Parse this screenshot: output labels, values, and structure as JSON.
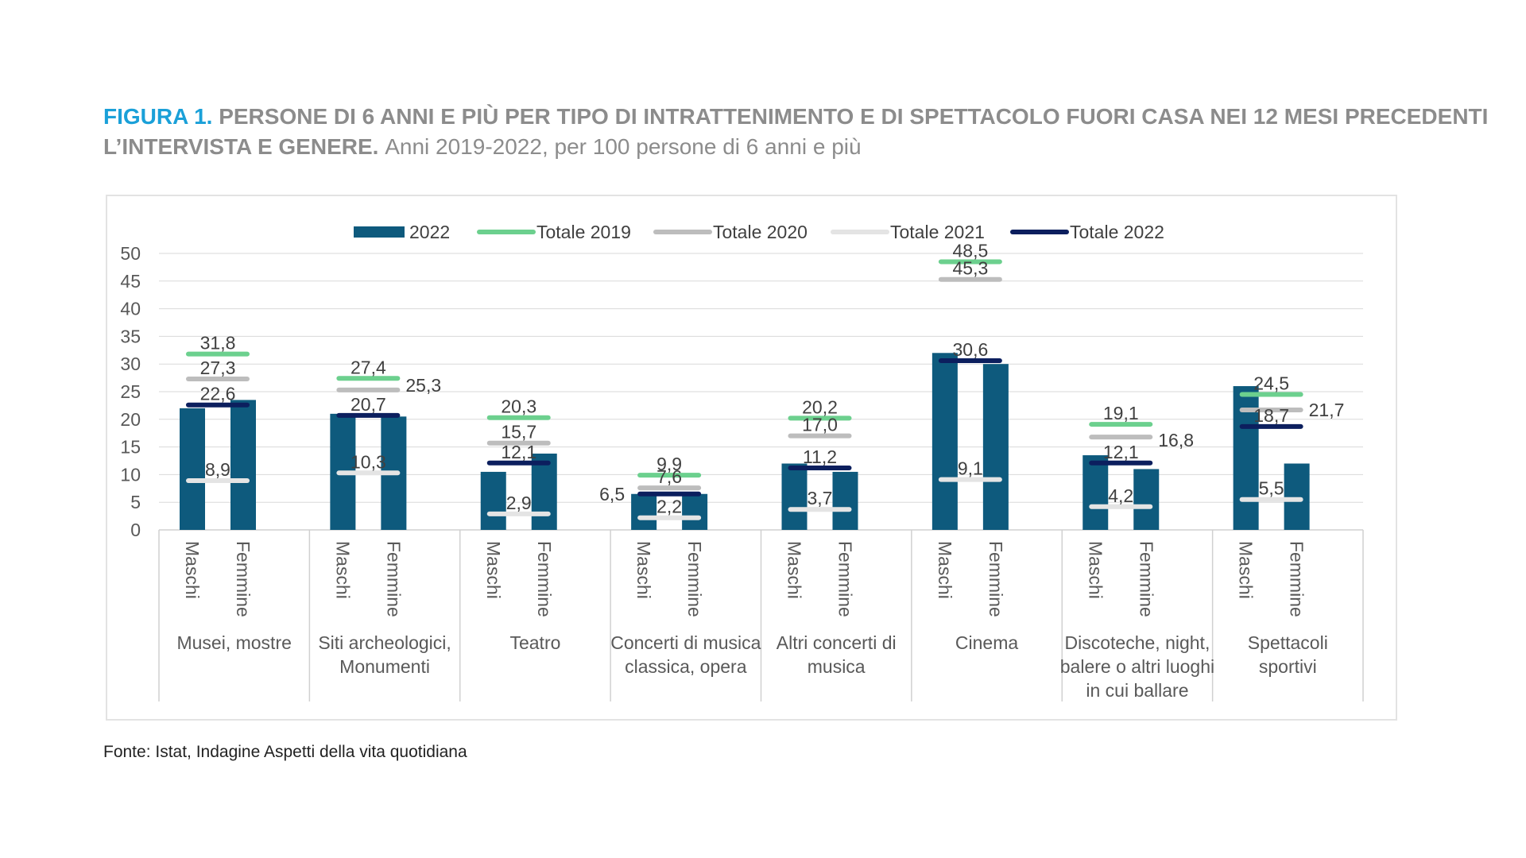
{
  "figure": {
    "label": "FIGURA 1.",
    "title_line1": "PERSONE DI 6 ANNI E PIÙ PER TIPO DI INTRATTENIMENTO E DI SPETTACOLO FUORI CASA NEI 12 MESI PRECEDENTI",
    "title_line2": "L’INTERVISTA E GENERE.",
    "subtitle": "Anni 2019-2022, per 100 persone di 6 anni e più"
  },
  "source": "Fonte: Istat, Indagine Aspetti della vita quotidiana",
  "chart_data": {
    "type": "bar",
    "ylim": [
      0,
      50
    ],
    "yticks": [
      0,
      5,
      10,
      15,
      20,
      25,
      30,
      35,
      40,
      45,
      50
    ],
    "grid": true,
    "legend_position": "top",
    "gender_labels": [
      "Maschi",
      "Femmine"
    ],
    "categories": [
      [
        "Musei, mostre"
      ],
      [
        "Siti archeologici,",
        "Monumenti"
      ],
      [
        "Teatro"
      ],
      [
        "Concerti di musica",
        "classica, opera"
      ],
      [
        "Altri concerti di",
        "musica"
      ],
      [
        "Cinema"
      ],
      [
        "Discoteche, night,",
        "balere o altri luoghi",
        "in cui ballare"
      ],
      [
        "Spettacoli",
        "sportivi"
      ]
    ],
    "bars": {
      "name": "2022",
      "color": "#0e5a7d",
      "maschi": [
        22.0,
        21.0,
        10.5,
        6.5,
        12.0,
        32.0,
        13.5,
        26.0
      ],
      "femmine": [
        23.5,
        20.5,
        13.8,
        6.5,
        10.5,
        30.0,
        11.0,
        12.0
      ],
      "value_labels": [
        {
          "index": 3,
          "text": "6,5"
        }
      ]
    },
    "series": [
      {
        "name": "Totale 2019",
        "color": "#6cd08e",
        "values": [
          31.8,
          27.4,
          20.3,
          9.9,
          20.2,
          48.5,
          19.1,
          24.5
        ],
        "labels": [
          "31,8",
          "27,4",
          "20,3",
          "9,9",
          "20,2",
          "48,5",
          "19,1",
          "24,5"
        ]
      },
      {
        "name": "Totale 2020",
        "color": "#bdbdbd",
        "values": [
          27.3,
          25.3,
          15.7,
          7.6,
          17.0,
          45.3,
          16.8,
          21.7
        ],
        "labels": [
          "27,3",
          "25,3",
          "15,7",
          "7,6",
          "17,0",
          "45,3",
          "16,8",
          "21,7"
        ]
      },
      {
        "name": "Totale 2021",
        "color": "#e4e4e4",
        "values": [
          8.9,
          10.3,
          2.9,
          2.2,
          3.7,
          9.1,
          4.2,
          5.5
        ],
        "labels": [
          "8,9",
          "10,3",
          "2,9",
          "2,2",
          "3,7",
          "9,1",
          "4,2",
          "5,5"
        ]
      },
      {
        "name": "Totale 2022",
        "color": "#0c1f5e",
        "values": [
          22.6,
          20.7,
          12.1,
          6.5,
          11.2,
          30.6,
          12.1,
          18.7
        ],
        "labels": [
          "22,6",
          "20,7",
          "12,1",
          "",
          "11,2",
          "30,6",
          "12,1",
          "18,7"
        ]
      }
    ]
  }
}
